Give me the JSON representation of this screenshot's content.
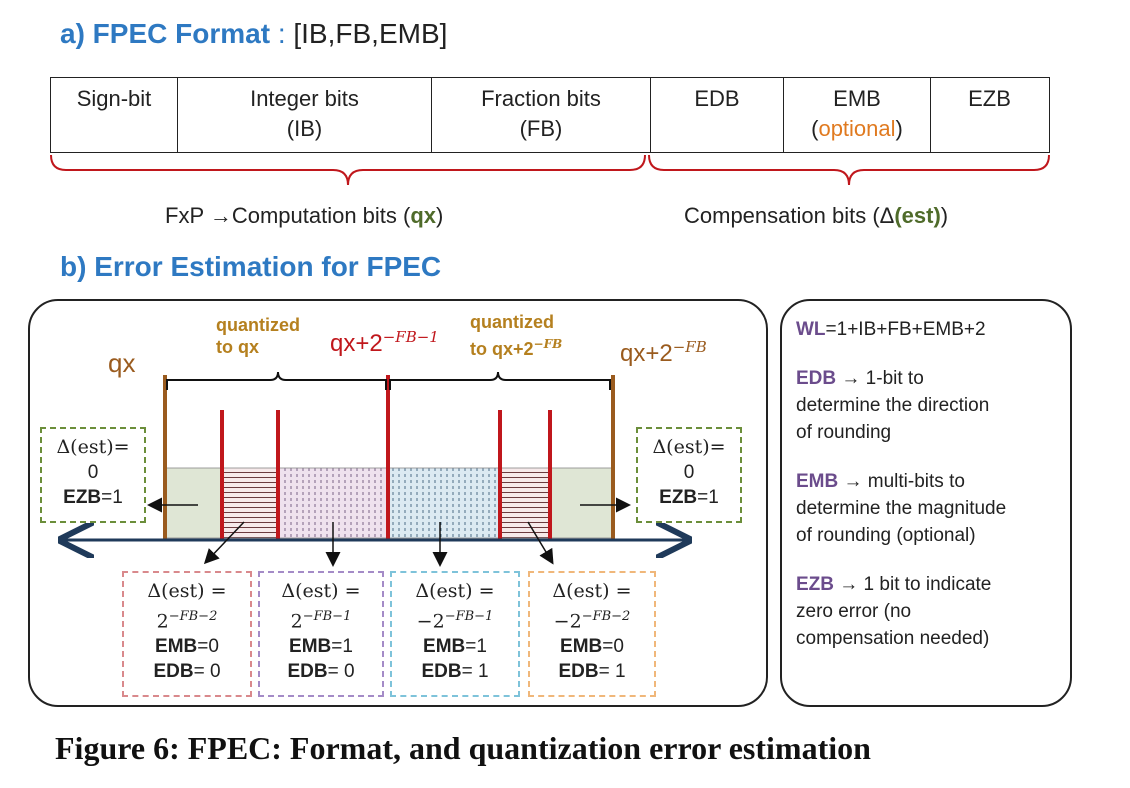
{
  "section_a": {
    "title": "a) FPEC Format",
    "colon": ":",
    "format": "[IB,FB,EMB]"
  },
  "format_table": {
    "sign": "Sign-bit",
    "integer_line1": "Integer bits",
    "integer_line2": "(IB)",
    "fraction_line1": "Fraction bits",
    "fraction_line2": "(FB)",
    "edb": "EDB",
    "emb_line1": "EMB",
    "emb_open": "(",
    "emb_optional": "optional",
    "emb_close": ")",
    "ezb": "EZB"
  },
  "bits_labels": {
    "computation_prefix": "FxP →Computation bits (",
    "computation_bold": "qx",
    "computation_suffix": ")",
    "compensation_prefix": "Compensation bits (Δ",
    "compensation_bold": "(est)",
    "compensation_suffix": ")"
  },
  "section_b": {
    "title": "b) Error Estimation for FPEC"
  },
  "axis": {
    "qx": "qx",
    "qx_half_base": "qx+2",
    "qx_half_exp": "−FB−1",
    "qx_full_base": "qx+2",
    "qx_full_exp": "−FB",
    "quantized_qx_line1": "quantized",
    "quantized_qx_line2": "to qx",
    "quantized_next_line1": "quantized",
    "quantized_next_line2_base": "to qx+2",
    "quantized_next_line2_exp": "−FB"
  },
  "est_boxes": {
    "left": {
      "line1": "Δ(est)=",
      "line2": "0",
      "flag_name": "EZB",
      "flag_value": "=1"
    },
    "right": {
      "line1": "Δ(est)=",
      "line2": "0",
      "flag_name": "EZB",
      "flag_value": "=1"
    },
    "b1": {
      "line1": "Δ(est) =",
      "base": "2",
      "exp": "−FB−2",
      "emb_name": "EMB",
      "emb_value": "=0",
      "edb_name": "EDB",
      "edb_value": "= 0"
    },
    "b2": {
      "line1": "Δ(est) =",
      "base": "2",
      "exp": "−FB−1",
      "emb_name": "EMB",
      "emb_value": "=1",
      "edb_name": "EDB",
      "edb_value": "= 0"
    },
    "b3": {
      "line1": "Δ(est) =",
      "base": "−2",
      "exp": "−FB−1",
      "emb_name": "EMB",
      "emb_value": "=1",
      "edb_name": "EDB",
      "edb_value": "= 1"
    },
    "b4": {
      "line1": "Δ(est) =",
      "base": "−2",
      "exp": "−FB−2",
      "emb_name": "EMB",
      "emb_value": "=0",
      "edb_name": "EDB",
      "edb_value": "= 1"
    }
  },
  "side_panel": {
    "wl_name": "WL",
    "wl_formula": "=1+IB+FB+EMB+2",
    "edb_name": "EDB",
    "edb_text1": " → 1-bit to",
    "edb_text2": "determine the direction",
    "edb_text3": "of rounding",
    "emb_name": "EMB",
    "emb_text1": " → multi-bits to",
    "emb_text2": "determine the magnitude",
    "emb_text3": "of rounding (optional)",
    "ezb_name": "EZB",
    "ezb_text1": " → 1 bit to indicate",
    "ezb_text2": "zero error (no",
    "ezb_text3": "compensation needed)"
  },
  "caption": "Figure 6: FPEC: Format, and quantization error estimation",
  "colors": {
    "title_blue": "#2e79c2",
    "brace_red": "#c0171c",
    "brown": "#9a5b1e",
    "red_line": "#c0171c",
    "green_region": "#dfe6d5",
    "dark_blue_axis": "#1f3a5a",
    "box_green": "#6b8e3a",
    "box_pink": "#d9898c",
    "box_purple": "#a48bc7",
    "box_blue": "#7ec3da",
    "box_orange": "#f0b77a"
  }
}
